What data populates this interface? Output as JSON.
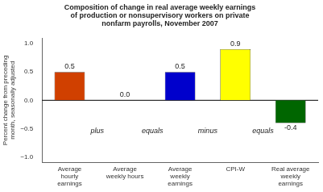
{
  "chart_data": {
    "type": "bar",
    "title": "Composition of change in real average weekly earnings\nof production or nonsupervisory workers on private\nnonfarm payrolls, November 2007",
    "categories": [
      "Average\nhourly\nearnings",
      "Average\nweekly hours",
      "Average\nweekly\nearnings",
      "CPI-W",
      "Real average\nweekly\nearnings"
    ],
    "values": [
      0.5,
      0.0,
      0.5,
      0.9,
      -0.4
    ],
    "value_labels": [
      "0.5",
      "0.0",
      "0.5",
      "0.9",
      "-0.4"
    ],
    "data_labels": true,
    "colors": [
      "#D04000",
      "#D04000",
      "#0000CC",
      "#FFFF00",
      "#006600"
    ],
    "ylabel": "Percent change from preceding\nmonth, seasonally adjusted",
    "ylim": [
      -1.1,
      1.1
    ],
    "yticks": [
      {
        "value": -1.0,
        "label": "−1.0"
      },
      {
        "value": -0.5,
        "label": "−0.5"
      },
      {
        "value": 0.0,
        "label": "0.0"
      },
      {
        "value": 0.5,
        "label": "0.5"
      },
      {
        "value": 1.0,
        "label": "1.0"
      }
    ],
    "grid": false,
    "annotations": [
      {
        "text": "plus",
        "between": [
          "Average\nhourly\nearnings",
          "Average\nweekly hours"
        ]
      },
      {
        "text": "equals",
        "between": [
          "Average\nweekly hours",
          "Average\nweekly\nearnings"
        ]
      },
      {
        "text": "minus",
        "between": [
          "Average\nweekly\nearnings",
          "CPI-W"
        ]
      },
      {
        "text": "equals",
        "between": [
          "CPI-W",
          "Real average\nweekly\nearnings"
        ]
      }
    ]
  }
}
